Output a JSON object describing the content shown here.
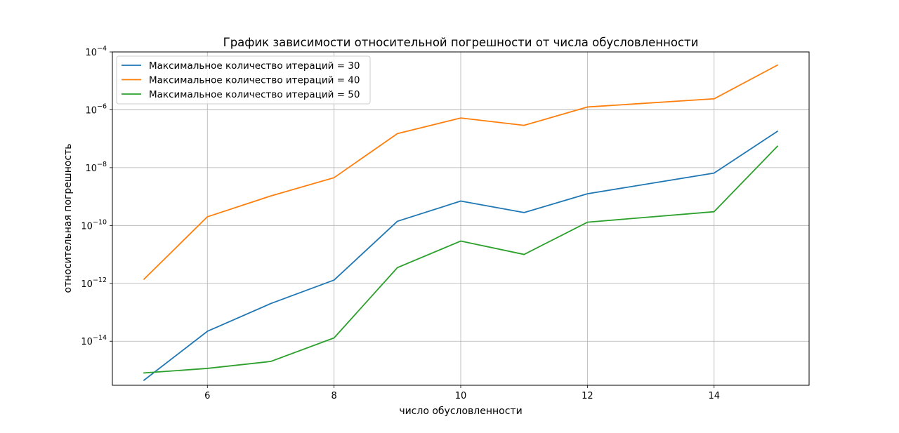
{
  "chart_data": {
    "type": "line",
    "title": "График зависимости относительной погрешности от числа обусловленности",
    "xlabel": "число обусловленности",
    "ylabel": "относительная погрешность",
    "yscale": "log",
    "x": [
      5,
      6,
      7,
      8,
      9,
      10,
      11,
      12,
      14,
      15
    ],
    "xticks": [
      6,
      8,
      10,
      12,
      14
    ],
    "xlim": [
      4.5,
      15.5
    ],
    "yticks": [
      {
        "exp": -14,
        "label": "10",
        "sup": "−14"
      },
      {
        "exp": -12,
        "label": "10",
        "sup": "−12"
      },
      {
        "exp": -10,
        "label": "10",
        "sup": "−10"
      },
      {
        "exp": -8,
        "label": "10",
        "sup": "−8"
      },
      {
        "exp": -6,
        "label": "10",
        "sup": "−6"
      },
      {
        "exp": -4,
        "label": "10",
        "sup": "−4"
      }
    ],
    "ylim": [
      3e-16,
      0.0001
    ],
    "grid": true,
    "legend_position": "top-left",
    "series": [
      {
        "name": "Максимальное количество итераций = 30",
        "color": "#1f77b4",
        "values": [
          4.5e-16,
          2.2e-14,
          2e-13,
          1.3e-12,
          1.4e-10,
          7e-10,
          2.8e-10,
          1.25e-09,
          6.5e-09,
          1.8e-07
        ]
      },
      {
        "name": "Максимальное количество итераций = 40",
        "color": "#ff7f0e",
        "values": [
          1.4e-12,
          2e-10,
          1.05e-09,
          4.5e-09,
          1.5e-07,
          5.2e-07,
          2.9e-07,
          1.25e-06,
          2.4e-06,
          3.5e-05
        ]
      },
      {
        "name": "Максимальное количество итераций = 50",
        "color": "#2ca02c",
        "values": [
          8e-16,
          1.15e-15,
          2e-15,
          1.3e-14,
          3.5e-12,
          2.9e-11,
          1e-11,
          1.3e-10,
          3e-10,
          5.5e-08
        ]
      }
    ]
  }
}
